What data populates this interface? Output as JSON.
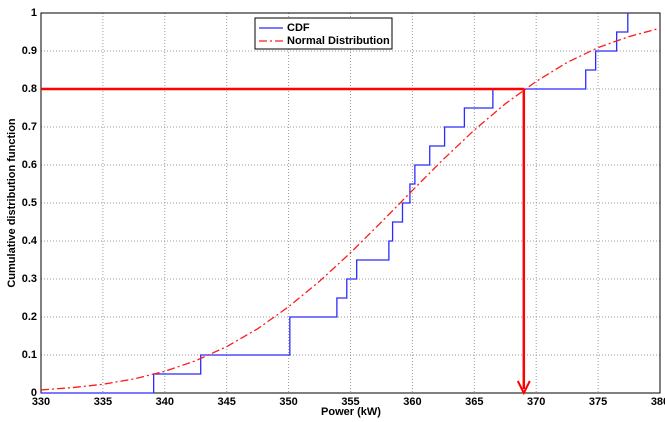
{
  "chart_data": {
    "type": "line",
    "xlabel": "Power (kW)",
    "ylabel": "Cumulative distribution function",
    "xlim": [
      330,
      380
    ],
    "ylim": [
      0,
      1
    ],
    "xticks": [
      330,
      335,
      340,
      345,
      350,
      355,
      360,
      365,
      370,
      375,
      380
    ],
    "yticks": [
      0,
      0.1,
      0.2,
      0.3,
      0.4,
      0.5,
      0.6,
      0.7,
      0.8,
      0.9,
      1
    ],
    "grid": true,
    "legend": "upper center",
    "series": [
      {
        "name": "CDF",
        "color": "#2b2bff",
        "dash": "none",
        "x": [
          330,
          339.1,
          339.1,
          342.9,
          342.9,
          350.1,
          350.1,
          353.9,
          353.9,
          354.7,
          354.7,
          355.5,
          355.5,
          358.1,
          358.1,
          358.4,
          358.4,
          359.2,
          359.2,
          359.8,
          359.8,
          360.2,
          360.2,
          361.4,
          361.4,
          362.6,
          362.6,
          364.2,
          364.2,
          366.5,
          366.5,
          374,
          374,
          374.8,
          374.8,
          376.5,
          376.5,
          377.4,
          377.4
        ],
        "values": [
          0,
          0,
          0.05,
          0.05,
          0.1,
          0.1,
          0.2,
          0.2,
          0.25,
          0.25,
          0.3,
          0.3,
          0.35,
          0.35,
          0.4,
          0.4,
          0.45,
          0.45,
          0.5,
          0.5,
          0.55,
          0.55,
          0.6,
          0.6,
          0.65,
          0.65,
          0.7,
          0.7,
          0.75,
          0.75,
          0.8,
          0.8,
          0.85,
          0.85,
          0.9,
          0.9,
          0.95,
          0.95,
          1
        ]
      },
      {
        "name": "Normal Distribution",
        "color": "#ff1a1a",
        "dash": "8,3,2,3",
        "x": [
          330,
          332.5,
          335,
          337.5,
          340,
          342.5,
          345,
          347.5,
          350,
          352.5,
          355,
          357.5,
          360,
          362.5,
          365,
          367.5,
          370,
          372.5,
          375,
          377.5,
          380
        ],
        "values": [
          0.008,
          0.014,
          0.023,
          0.037,
          0.057,
          0.085,
          0.122,
          0.169,
          0.227,
          0.294,
          0.369,
          0.45,
          0.533,
          0.615,
          0.692,
          0.761,
          0.82,
          0.87,
          0.909,
          0.938,
          0.96
        ]
      }
    ],
    "reference": {
      "x": 369,
      "y": 0.8,
      "color": "#ff0000"
    }
  }
}
